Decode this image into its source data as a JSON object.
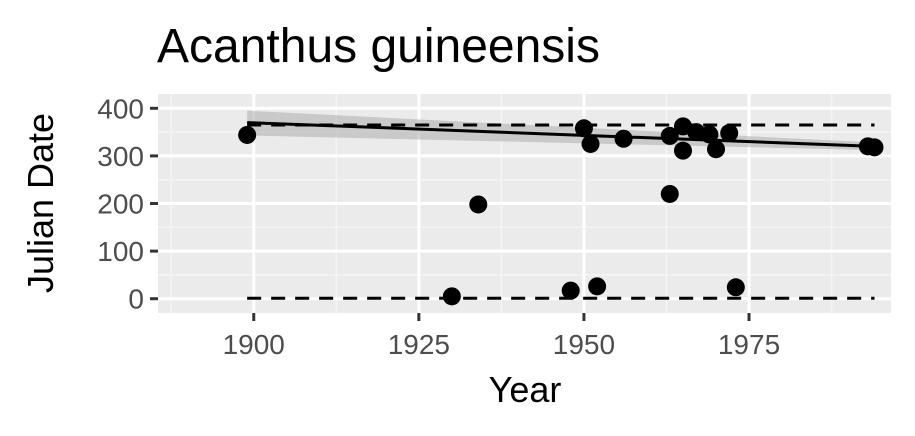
{
  "chart_data": {
    "type": "scatter",
    "title": "Acanthus guineensis",
    "xlabel": "Year",
    "ylabel": "Julian Date",
    "xlim": [
      1885.5,
      1996.5
    ],
    "ylim": [
      -30,
      430
    ],
    "x_ticks": [
      1900,
      1925,
      1950,
      1975
    ],
    "y_ticks": [
      0,
      100,
      200,
      300,
      400
    ],
    "grid": true,
    "legend": "none",
    "colors": {
      "panel_background": "#ebebeb",
      "grid_major": "#ffffff",
      "grid_minor": "#f5f5f5",
      "points": "#000000",
      "trend_line": "#000000",
      "confidence_band": "#b3b3b3"
    },
    "points": [
      {
        "x": 1899,
        "y": 344
      },
      {
        "x": 1930,
        "y": 5
      },
      {
        "x": 1934,
        "y": 198
      },
      {
        "x": 1948,
        "y": 17
      },
      {
        "x": 1950,
        "y": 358
      },
      {
        "x": 1951,
        "y": 325
      },
      {
        "x": 1952,
        "y": 26
      },
      {
        "x": 1956,
        "y": 336
      },
      {
        "x": 1963,
        "y": 342
      },
      {
        "x": 1963,
        "y": 220
      },
      {
        "x": 1965,
        "y": 362
      },
      {
        "x": 1965,
        "y": 311
      },
      {
        "x": 1967,
        "y": 350
      },
      {
        "x": 1969,
        "y": 345
      },
      {
        "x": 1970,
        "y": 314
      },
      {
        "x": 1972,
        "y": 348
      },
      {
        "x": 1973,
        "y": 24
      },
      {
        "x": 1993,
        "y": 320
      },
      {
        "x": 1994,
        "y": 318
      }
    ],
    "trend_line": {
      "x": [
        1899,
        1994
      ],
      "y": [
        370,
        320
      ]
    },
    "confidence_band": {
      "x": [
        1899,
        1994
      ],
      "upper": [
        395,
        328
      ],
      "lower": [
        343,
        312
      ]
    },
    "reference_lines": [
      {
        "style": "dashed",
        "y": 365,
        "x": [
          1899,
          1994
        ]
      },
      {
        "style": "dashed",
        "y": 1,
        "x": [
          1899,
          1994
        ]
      }
    ]
  }
}
